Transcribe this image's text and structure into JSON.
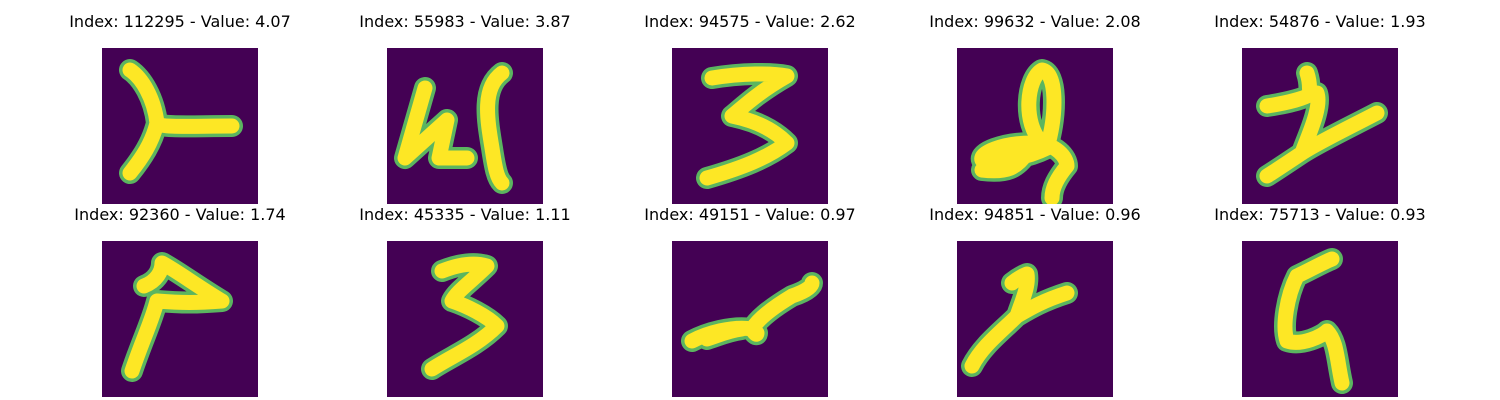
{
  "colors": {
    "background": "#440154",
    "glyph_fill": "#fde725",
    "glyph_edge": "#5ec962"
  },
  "panels": [
    {
      "title": "Index: 112295 - Value: 4.07",
      "glyph": "g0"
    },
    {
      "title": "Index: 55983 - Value: 3.87",
      "glyph": "g1"
    },
    {
      "title": "Index: 94575 - Value: 2.62",
      "glyph": "g2"
    },
    {
      "title": "Index: 99632 - Value: 2.08",
      "glyph": "g3"
    },
    {
      "title": "Index: 54876 - Value: 1.93",
      "glyph": "g4"
    },
    {
      "title": "Index: 92360 - Value: 1.74",
      "glyph": "g5"
    },
    {
      "title": "Index: 45335 - Value: 1.11",
      "glyph": "g6"
    },
    {
      "title": "Index: 49151 - Value: 0.97",
      "glyph": "g7"
    },
    {
      "title": "Index: 94851 - Value: 0.96",
      "glyph": "g8"
    },
    {
      "title": "Index: 75713 - Value: 0.93",
      "glyph": "g9"
    }
  ]
}
